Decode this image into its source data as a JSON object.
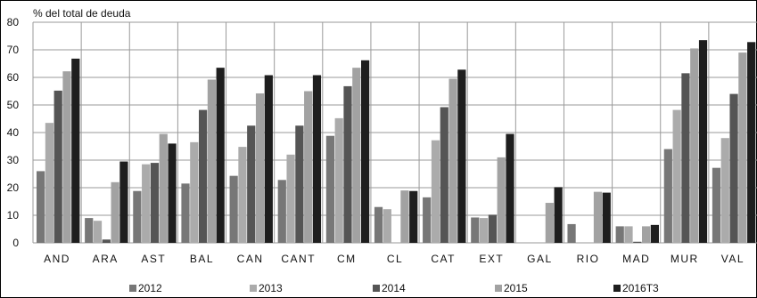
{
  "chart_data": {
    "type": "bar",
    "title": "% del total de deuda",
    "categories": [
      "AND",
      "ARA",
      "AST",
      "BAL",
      "CAN",
      "CANT",
      "CM",
      "CL",
      "CAT",
      "EXT",
      "GAL",
      "RIO",
      "MAD",
      "MUR",
      "VAL"
    ],
    "series": [
      {
        "name": "2012",
        "color": "#777777",
        "values": [
          26.0,
          9.0,
          18.8,
          21.5,
          24.3,
          22.8,
          38.8,
          13.0,
          16.5,
          9.2,
          0.0,
          6.8,
          6.0,
          34.0,
          27.2
        ]
      },
      {
        "name": "2013",
        "color": "#ababab",
        "values": [
          43.5,
          8.0,
          28.5,
          36.5,
          34.8,
          32.0,
          45.2,
          12.2,
          37.2,
          9.0,
          0.0,
          0.0,
          6.0,
          48.2,
          38.0
        ]
      },
      {
        "name": "2014",
        "color": "#555555",
        "values": [
          55.2,
          1.2,
          29.0,
          48.2,
          42.5,
          42.5,
          56.8,
          0.0,
          49.2,
          10.2,
          0.0,
          0.0,
          0.4,
          61.5,
          54.0
        ]
      },
      {
        "name": "2015",
        "color": "#a2a2a2",
        "values": [
          62.2,
          22.0,
          39.5,
          59.2,
          54.2,
          55.0,
          63.5,
          19.0,
          59.5,
          31.0,
          14.5,
          18.5,
          6.0,
          70.5,
          69.0
        ]
      },
      {
        "name": "2016T3",
        "color": "#1e1e1e",
        "values": [
          66.8,
          29.5,
          36.0,
          63.5,
          60.8,
          60.8,
          66.2,
          18.8,
          62.8,
          39.5,
          20.2,
          18.2,
          6.5,
          73.5,
          72.8
        ]
      }
    ],
    "ylim": [
      0,
      80
    ],
    "yticks": [
      "0",
      "10",
      "20",
      "30",
      "40",
      "50",
      "60",
      "70",
      "80"
    ],
    "grid": "horizontal",
    "legend": "bottom"
  }
}
